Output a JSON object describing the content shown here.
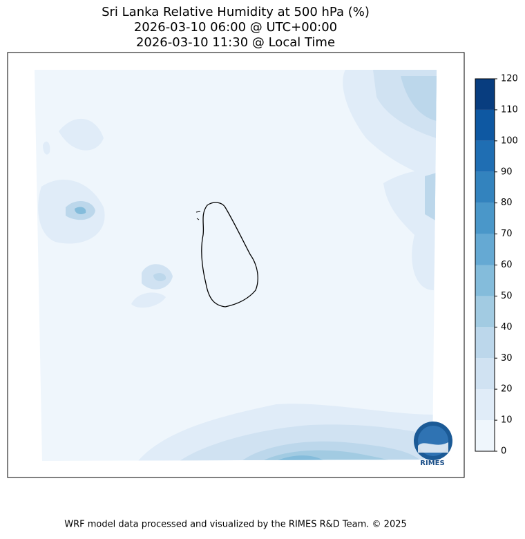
{
  "header": {
    "title": [
      "Sri Lanka Relative Humidity at 500 hPa (%)",
      "2026-03-10 06:00 @ UTC+00:00",
      "2026-03-10 11:30 @ Local Time"
    ]
  },
  "colorbar": {
    "ticks": [
      0,
      10,
      20,
      30,
      40,
      50,
      60,
      70,
      80,
      90,
      100,
      110,
      120
    ],
    "colors": [
      "#eff6fc",
      "#e0ecf8",
      "#d0e2f2",
      "#bcd7eb",
      "#a2cbe2",
      "#84bcdb",
      "#65a9d3",
      "#4a97c9",
      "#3383be",
      "#1f6eb3",
      "#0e58a2",
      "#083d7f"
    ]
  },
  "logo": {
    "label": "RIMES"
  },
  "footer": {
    "text": "WRF model data processed and visualized by the RIMES R&D Team. © 2025"
  }
}
